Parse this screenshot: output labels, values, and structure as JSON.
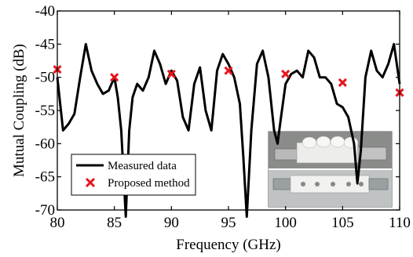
{
  "chart_data": {
    "type": "line",
    "title": "",
    "xlabel": "Frequency (GHz)",
    "ylabel": "Mutual Coupling (dB)",
    "xlim": [
      80,
      110
    ],
    "ylim": [
      -70,
      -40
    ],
    "x_ticks": [
      "80",
      "85",
      "90",
      "95",
      "100",
      "105",
      "110"
    ],
    "x_tick_values": [
      80,
      85,
      90,
      95,
      100,
      105,
      110
    ],
    "y_ticks": [
      "-40",
      "-45",
      "-50",
      "-55",
      "-60",
      "-65",
      "-70"
    ],
    "y_tick_values": [
      -40,
      -45,
      -50,
      -55,
      -60,
      -65,
      -70
    ],
    "grid": false,
    "legend_position": "bottom-left",
    "colors": {
      "measured": "#000000",
      "proposed": "#e8141c"
    },
    "series": [
      {
        "name": "Measured data",
        "style": "line",
        "x": [
          80,
          80.5,
          81,
          81.5,
          82,
          82.5,
          83,
          83.5,
          84,
          84.5,
          85,
          85.3,
          85.6,
          86,
          86.3,
          86.6,
          87,
          87.5,
          88,
          88.5,
          89,
          89.5,
          90,
          90.5,
          91,
          91.5,
          92,
          92.5,
          93,
          93.5,
          94,
          94.5,
          95,
          95.5,
          96,
          96.3,
          96.6,
          97,
          97.5,
          98,
          98.5,
          99,
          99.3,
          99.6,
          100,
          100.5,
          101,
          101.5,
          102,
          102.5,
          103,
          103.5,
          104,
          104.5,
          105,
          105.5,
          106,
          106.3,
          106.6,
          107,
          107.5,
          108,
          108.5,
          109,
          109.5,
          110
        ],
        "y": [
          -50,
          -58,
          -57,
          -55.5,
          -50,
          -45,
          -49,
          -51,
          -52.5,
          -52,
          -50,
          -53,
          -58,
          -71,
          -58,
          -53,
          -51,
          -52,
          -50,
          -46,
          -48,
          -51,
          -49,
          -50.5,
          -56,
          -58,
          -51,
          -48.5,
          -55,
          -58,
          -49,
          -46.5,
          -48,
          -50,
          -54,
          -62,
          -71,
          -58,
          -48,
          -46,
          -50,
          -58,
          -60,
          -56,
          -51,
          -49.5,
          -49,
          -50,
          -46,
          -47,
          -50,
          -50,
          -51,
          -54,
          -54.5,
          -56,
          -60,
          -66,
          -61,
          -50,
          -46,
          -49,
          -50,
          -48,
          -45,
          -51
        ]
      },
      {
        "name": "Proposed method",
        "style": "marker-x",
        "x": [
          80,
          85,
          90,
          95,
          100,
          105,
          110
        ],
        "y": [
          -48.8,
          -50,
          -49.5,
          -49,
          -49.5,
          -50.8,
          -52.3
        ]
      }
    ]
  }
}
